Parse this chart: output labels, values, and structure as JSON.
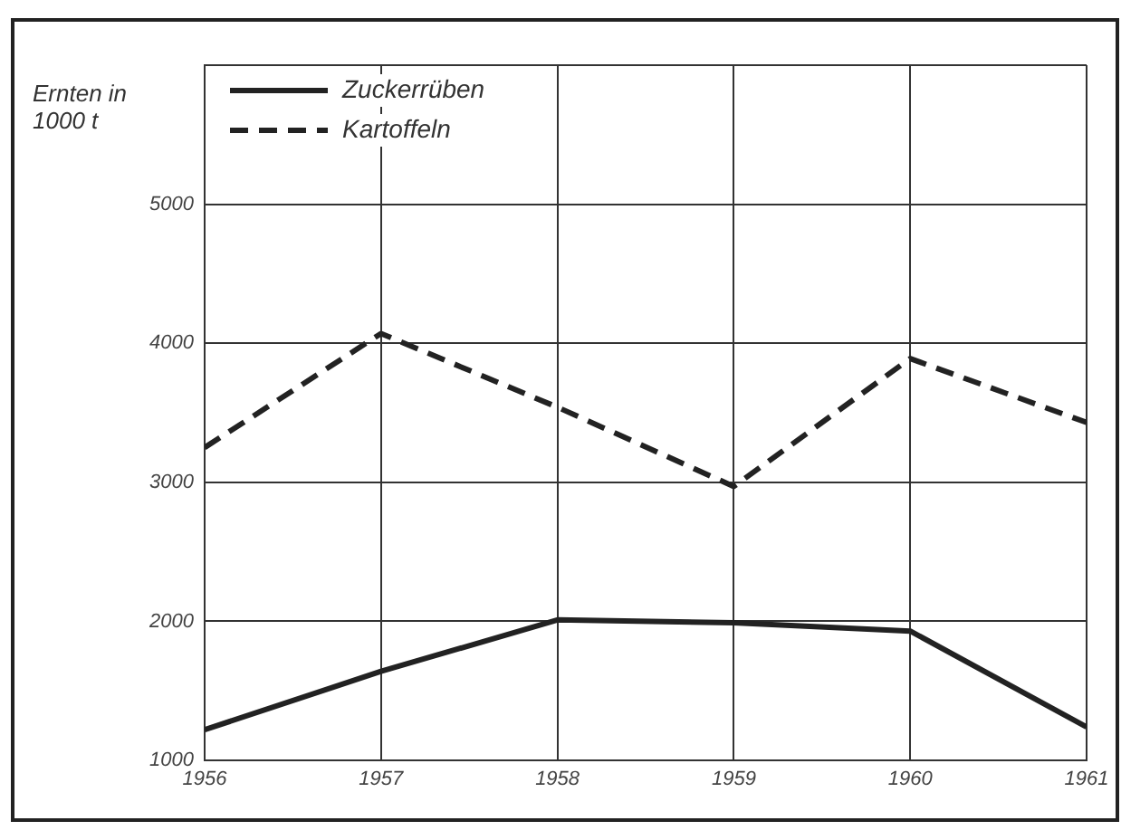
{
  "chart_data": {
    "type": "line",
    "ylabel": "Ernten in 1000 t",
    "x": [
      1956,
      1957,
      1958,
      1959,
      1960,
      1961
    ],
    "xlim": [
      1956,
      1961
    ],
    "xticks": [
      1956,
      1957,
      1958,
      1959,
      1960,
      1961
    ],
    "ylim": [
      1000,
      6000
    ],
    "yticks": [
      1000,
      2000,
      3000,
      4000,
      5000,
      {
        "value": 6000,
        "label": null
      }
    ],
    "series": [
      {
        "name": "Zuckerrüben",
        "color": "#222222",
        "line_style": "solid",
        "values": [
          1220,
          1640,
          2010,
          1990,
          1930,
          1240
        ]
      },
      {
        "name": "Kartoffeln",
        "color": "#222222",
        "line_style": "dashed",
        "values": [
          3250,
          4070,
          3540,
          2970,
          3890,
          3430
        ]
      }
    ],
    "grid": true,
    "legend": "top left",
    "marker": "none"
  }
}
